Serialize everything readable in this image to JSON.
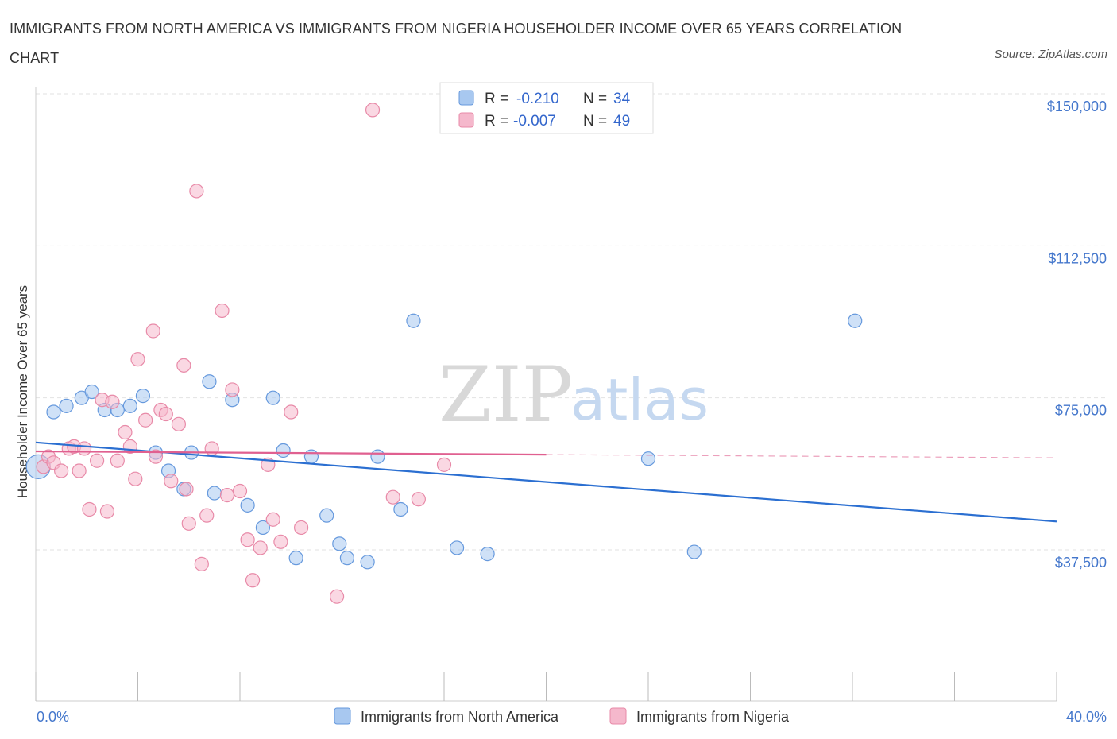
{
  "title": "IMMIGRANTS FROM NORTH AMERICA VS IMMIGRANTS FROM NIGERIA HOUSEHOLDER INCOME OVER 65 YEARS CORRELATION CHART",
  "source": "Source: ZipAtlas.com",
  "watermark": {
    "part1": "ZIP",
    "part2": "atlas"
  },
  "legend_top": {
    "rows": [
      {
        "r_label": "R =",
        "r_value": "-0.210",
        "n_label": "N =",
        "n_value": "34",
        "color": "#a8c8f0"
      },
      {
        "r_label": "R =",
        "r_value": "-0.007",
        "n_label": "N =",
        "n_value": "49",
        "color": "#f5b8cc"
      }
    ]
  },
  "legend_bottom": {
    "items": [
      {
        "label": "Immigrants from North America",
        "color": "#a8c8f0"
      },
      {
        "label": "Immigrants from Nigeria",
        "color": "#f5b8cc"
      }
    ]
  },
  "chart_data": {
    "type": "scatter",
    "ylabel": "Householder Income Over 65 years",
    "x_ticks": {
      "left": "0.0%",
      "right": "40.0%"
    },
    "y_ticks": [
      "$150,000",
      "$112,500",
      "$75,000",
      "$37,500"
    ],
    "y_tick_values": [
      150000,
      112500,
      75000,
      37500
    ],
    "xlim": [
      0,
      40
    ],
    "ylim": [
      0,
      155000
    ],
    "grid": true,
    "series": [
      {
        "name": "Immigrants from North America",
        "color": "#a8c8f0",
        "stroke": "#6699dd",
        "trend_color": "#2b6fd1",
        "trend": {
          "x0": 0,
          "y0": 64000,
          "x1": 40,
          "y1": 44500,
          "dash_from": null
        },
        "points": [
          [
            0.1,
            58000
          ],
          [
            0.7,
            71500
          ],
          [
            1.2,
            73000
          ],
          [
            1.8,
            75000
          ],
          [
            2.2,
            76500
          ],
          [
            2.7,
            72000
          ],
          [
            3.2,
            72000
          ],
          [
            3.7,
            73000
          ],
          [
            4.2,
            75500
          ],
          [
            4.7,
            61500
          ],
          [
            5.2,
            57000
          ],
          [
            5.8,
            52500
          ],
          [
            6.1,
            61500
          ],
          [
            6.8,
            79000
          ],
          [
            7.0,
            51500
          ],
          [
            7.7,
            74500
          ],
          [
            8.3,
            48500
          ],
          [
            8.9,
            43000
          ],
          [
            9.3,
            75000
          ],
          [
            9.7,
            62000
          ],
          [
            10.2,
            35500
          ],
          [
            10.8,
            60500
          ],
          [
            11.4,
            46000
          ],
          [
            11.9,
            39000
          ],
          [
            12.2,
            35500
          ],
          [
            13.0,
            34500
          ],
          [
            13.4,
            60500
          ],
          [
            14.3,
            47500
          ],
          [
            14.8,
            94000
          ],
          [
            16.5,
            38000
          ],
          [
            17.7,
            36500
          ],
          [
            24.0,
            60000
          ],
          [
            25.8,
            37000
          ],
          [
            32.1,
            94000
          ]
        ]
      },
      {
        "name": "Immigrants from Nigeria",
        "color": "#f5b8cc",
        "stroke": "#e88aa8",
        "trend_color": "#e06090",
        "trend": {
          "x0": 0,
          "y0": 61800,
          "x1": 40,
          "y1": 60200,
          "dash_from": 20
        },
        "points": [
          [
            0.3,
            58000
          ],
          [
            0.5,
            60500
          ],
          [
            0.7,
            59000
          ],
          [
            1.0,
            57000
          ],
          [
            1.3,
            62500
          ],
          [
            1.5,
            63000
          ],
          [
            1.7,
            57000
          ],
          [
            1.9,
            62500
          ],
          [
            2.1,
            47500
          ],
          [
            2.4,
            59500
          ],
          [
            2.6,
            74500
          ],
          [
            2.8,
            47000
          ],
          [
            3.0,
            74000
          ],
          [
            3.2,
            59500
          ],
          [
            3.5,
            66500
          ],
          [
            3.7,
            63000
          ],
          [
            3.9,
            55000
          ],
          [
            4.0,
            84500
          ],
          [
            4.3,
            69500
          ],
          [
            4.6,
            91500
          ],
          [
            4.7,
            60500
          ],
          [
            4.9,
            72000
          ],
          [
            5.1,
            71000
          ],
          [
            5.3,
            54500
          ],
          [
            5.6,
            68500
          ],
          [
            5.8,
            83000
          ],
          [
            5.9,
            52500
          ],
          [
            6.0,
            44000
          ],
          [
            6.3,
            126000
          ],
          [
            6.5,
            34000
          ],
          [
            6.7,
            46000
          ],
          [
            6.9,
            62500
          ],
          [
            7.3,
            96500
          ],
          [
            7.5,
            51000
          ],
          [
            7.7,
            77000
          ],
          [
            8.0,
            52000
          ],
          [
            8.3,
            40000
          ],
          [
            8.5,
            30000
          ],
          [
            8.8,
            38000
          ],
          [
            9.1,
            58500
          ],
          [
            9.3,
            45000
          ],
          [
            9.6,
            39500
          ],
          [
            10.0,
            71500
          ],
          [
            10.4,
            43000
          ],
          [
            11.8,
            26000
          ],
          [
            13.2,
            146000
          ],
          [
            14.0,
            50500
          ],
          [
            15.0,
            50000
          ],
          [
            16.0,
            58500
          ]
        ]
      }
    ]
  }
}
